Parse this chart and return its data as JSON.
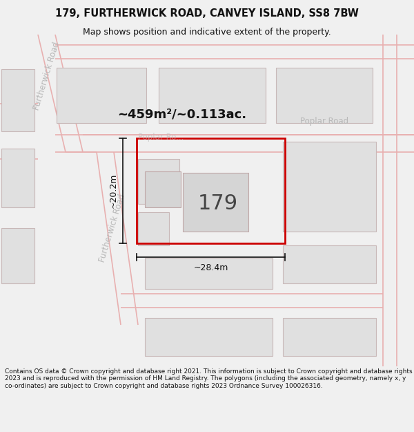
{
  "title": "179, FURTHERWICK ROAD, CANVEY ISLAND, SS8 7BW",
  "subtitle": "Map shows position and indicative extent of the property.",
  "area_text": "~459m²/~0.113ac.",
  "dim_width": "~28.4m",
  "dim_height": "~20.2m",
  "house_number": "179",
  "footer": "Contains OS data © Crown copyright and database right 2021. This information is subject to Crown copyright and database rights 2023 and is reproduced with the permission of HM Land Registry. The polygons (including the associated geometry, namely x, y co-ordinates) are subject to Crown copyright and database rights 2023 Ordnance Survey 100026316.",
  "bg_color": "#f0f0f0",
  "map_bg": "#ffffff",
  "block_fc": "#e0e0e0",
  "block_ec": "#c8b8b8",
  "road_line_color": "#e8b0b0",
  "highlight_color": "#cc0000",
  "road_label_color": "#b8b8b8",
  "dim_color": "#111111",
  "area_color": "#111111",
  "title_fontsize": 10.5,
  "subtitle_fontsize": 9,
  "footer_fontsize": 6.5
}
